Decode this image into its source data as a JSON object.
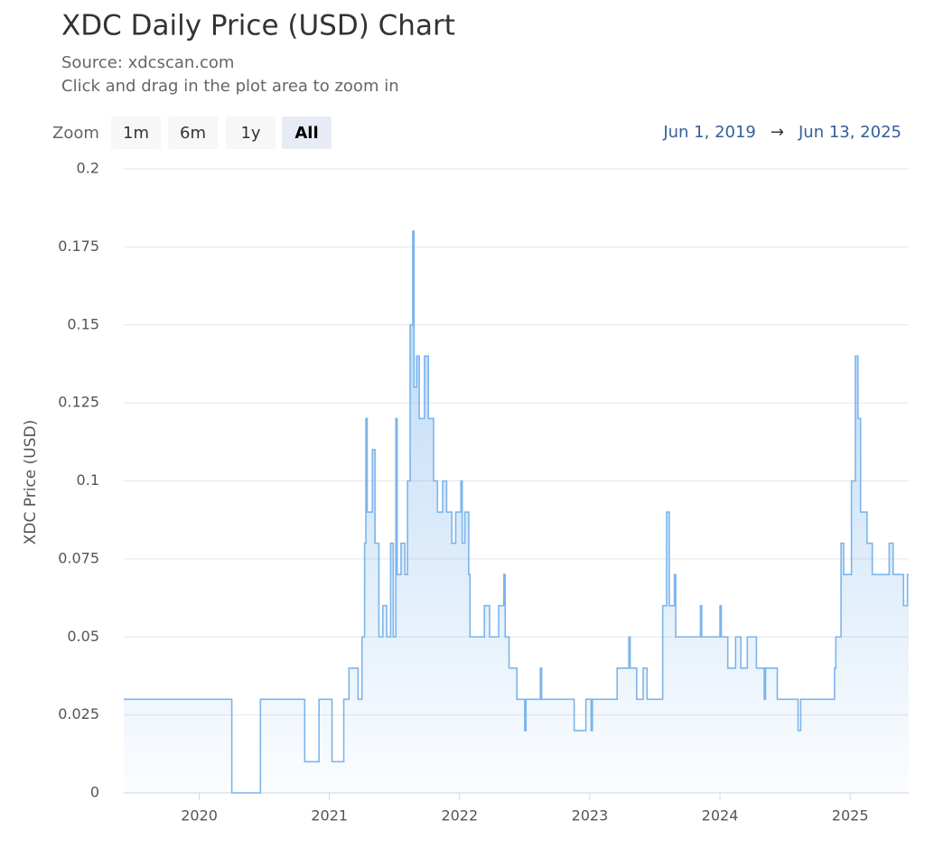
{
  "chart_data": {
    "type": "area",
    "step": true,
    "title": "XDC Daily Price (USD) Chart",
    "subtitle": [
      "Source: xdcscan.com",
      "Click and drag in the plot area to zoom in"
    ],
    "zoom_label": "Zoom",
    "zoom_buttons": [
      "1m",
      "6m",
      "1y",
      "All"
    ],
    "active_zoom": "All",
    "range_from": "Jun 1, 2019",
    "range_separator": "→",
    "range_to": "Jun 13, 2025",
    "y_label": "XDC Price (USD)",
    "color": "#7cb5ec",
    "grid": true,
    "xlim": [
      2019.42,
      2025.45
    ],
    "xticks": [
      2020,
      2021,
      2022,
      2023,
      2024,
      2025
    ],
    "ylim": [
      0,
      0.2
    ],
    "yticks": [
      0,
      0.025,
      0.05,
      0.075,
      0.1,
      0.125,
      0.15,
      0.175,
      0.2
    ],
    "x": [
      2019.42,
      2020.25,
      2020.47,
      2020.81,
      2020.92,
      2021.02,
      2021.11,
      2021.15,
      2021.22,
      2021.25,
      2021.27,
      2021.28,
      2021.29,
      2021.33,
      2021.35,
      2021.38,
      2021.41,
      2021.44,
      2021.47,
      2021.49,
      2021.51,
      2021.52,
      2021.55,
      2021.58,
      2021.6,
      2021.62,
      2021.64,
      2021.65,
      2021.67,
      2021.69,
      2021.73,
      2021.76,
      2021.8,
      2021.83,
      2021.87,
      2021.9,
      2021.94,
      2021.97,
      2022.01,
      2022.02,
      2022.04,
      2022.07,
      2022.08,
      2022.19,
      2022.23,
      2022.3,
      2022.34,
      2022.35,
      2022.38,
      2022.44,
      2022.5,
      2022.51,
      2022.62,
      2022.63,
      2022.88,
      2022.97,
      2023.01,
      2023.02,
      2023.21,
      2023.3,
      2023.31,
      2023.36,
      2023.41,
      2023.44,
      2023.56,
      2023.59,
      2023.61,
      2023.65,
      2023.66,
      2023.85,
      2023.86,
      2024.0,
      2024.01,
      2024.06,
      2024.12,
      2024.16,
      2024.21,
      2024.28,
      2024.34,
      2024.35,
      2024.44,
      2024.6,
      2024.62,
      2024.88,
      2024.89,
      2024.93,
      2024.95,
      2025.01,
      2025.04,
      2025.06,
      2025.08,
      2025.13,
      2025.17,
      2025.3,
      2025.33,
      2025.41,
      2025.44
    ],
    "values": [
      0.03,
      0,
      0.03,
      0.01,
      0.03,
      0.01,
      0.03,
      0.04,
      0.03,
      0.05,
      0.08,
      0.12,
      0.09,
      0.11,
      0.08,
      0.05,
      0.06,
      0.05,
      0.08,
      0.05,
      0.12,
      0.07,
      0.08,
      0.07,
      0.1,
      0.15,
      0.18,
      0.13,
      0.14,
      0.12,
      0.14,
      0.12,
      0.1,
      0.09,
      0.1,
      0.09,
      0.08,
      0.09,
      0.1,
      0.08,
      0.09,
      0.07,
      0.05,
      0.06,
      0.05,
      0.06,
      0.07,
      0.05,
      0.04,
      0.03,
      0.02,
      0.03,
      0.04,
      0.03,
      0.02,
      0.03,
      0.02,
      0.03,
      0.04,
      0.05,
      0.04,
      0.03,
      0.04,
      0.03,
      0.06,
      0.09,
      0.06,
      0.07,
      0.05,
      0.06,
      0.05,
      0.06,
      0.05,
      0.04,
      0.05,
      0.04,
      0.05,
      0.04,
      0.03,
      0.04,
      0.03,
      0.02,
      0.03,
      0.04,
      0.05,
      0.08,
      0.07,
      0.1,
      0.14,
      0.12,
      0.09,
      0.08,
      0.07,
      0.08,
      0.07,
      0.06,
      0.07
    ]
  }
}
